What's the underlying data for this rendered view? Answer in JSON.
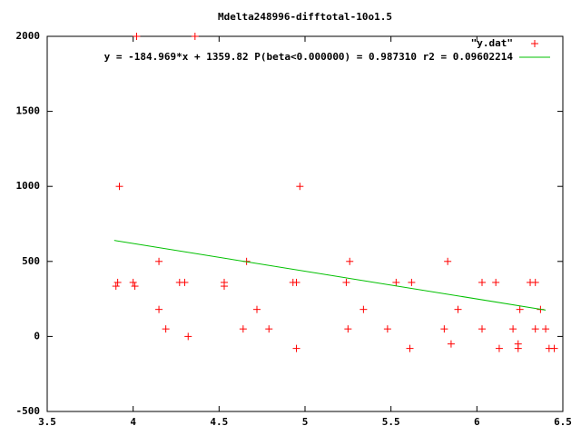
{
  "chart_data": {
    "type": "scatter",
    "title": "Mdelta248996-difftotal-10o1.5",
    "xlim": [
      3.5,
      6.5
    ],
    "ylim": [
      -500,
      2000
    ],
    "xticks": [
      3.5,
      4,
      4.5,
      5,
      5.5,
      6,
      6.5
    ],
    "yticks": [
      -500,
      0,
      500,
      1000,
      1500,
      2000
    ],
    "grid": false,
    "legend": "top-right",
    "series": [
      {
        "name": "\"y.dat\"",
        "color": "#ff0000",
        "marker": "+",
        "x": [
          3.9,
          3.91,
          3.92,
          4.0,
          4.01,
          4.02,
          4.15,
          4.15,
          4.19,
          4.27,
          4.3,
          4.32,
          4.36,
          4.53,
          4.53,
          4.64,
          4.66,
          4.72,
          4.79,
          4.93,
          4.95,
          4.95,
          4.97,
          5.24,
          5.25,
          5.26,
          5.34,
          5.48,
          5.53,
          5.61,
          5.62,
          5.81,
          5.83,
          5.85,
          5.89,
          6.03,
          6.03,
          6.11,
          6.13,
          6.21,
          6.24,
          6.24,
          6.25,
          6.31,
          6.34,
          6.34,
          6.37,
          6.4,
          6.42,
          6.45
        ],
        "values": [
          335,
          360,
          1000,
          360,
          335,
          2000,
          500,
          180,
          50,
          360,
          360,
          0,
          2000,
          360,
          335,
          50,
          500,
          180,
          50,
          360,
          -80,
          360,
          1000,
          360,
          50,
          500,
          180,
          50,
          360,
          -80,
          360,
          50,
          500,
          -50,
          180,
          360,
          50,
          360,
          -80,
          50,
          -50,
          -80,
          180,
          360,
          360,
          50,
          180,
          50,
          -80,
          -80
        ]
      },
      {
        "name": "y = -184.969*x + 1359.82 P(beta<0.000000) = 0.987310 r2 = 0.09602214",
        "color": "#00c000",
        "marker": "line",
        "x": [
          3.89,
          6.4
        ],
        "values": [
          640,
          176
        ]
      }
    ]
  }
}
